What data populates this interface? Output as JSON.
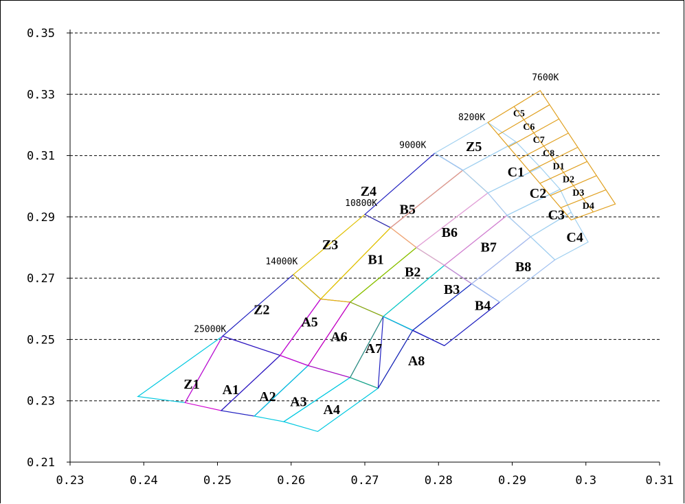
{
  "chart_data": {
    "type": "diagram",
    "xlim": [
      0.23,
      0.31
    ],
    "ylim": [
      0.21,
      0.35
    ],
    "x_ticks": [
      "0.23",
      "0.24",
      "0.25",
      "0.26",
      "0.27",
      "0.28",
      "0.29",
      "0.3",
      "0.31"
    ],
    "y_ticks": [
      "0.21",
      "0.23",
      "0.25",
      "0.27",
      "0.29",
      "0.31",
      "0.33",
      "0.35"
    ],
    "grid": "horizontal dashed",
    "cct_labels": [
      {
        "text": "25000K",
        "x": 0.249,
        "y": 0.2525
      },
      {
        "text": "14000K",
        "x": 0.2587,
        "y": 0.2745
      },
      {
        "text": "10800K",
        "x": 0.2695,
        "y": 0.2935
      },
      {
        "text": "9000K",
        "x": 0.2765,
        "y": 0.3125
      },
      {
        "text": "8200K",
        "x": 0.2845,
        "y": 0.3215
      },
      {
        "text": "7600K",
        "x": 0.2945,
        "y": 0.3345
      }
    ],
    "bins": [
      {
        "label": "Z1",
        "color": "#00c8e0",
        "poly": [
          [
            0.2392,
            0.2314
          ],
          [
            0.2507,
            0.2511
          ],
          [
            0.2456,
            0.2294
          ]
        ]
      },
      {
        "label": "A1",
        "color": "#d000d0",
        "poly": [
          [
            0.2456,
            0.2294
          ],
          [
            0.2507,
            0.2511
          ],
          [
            0.2585,
            0.2448
          ],
          [
            0.2505,
            0.2268
          ]
        ]
      },
      {
        "label": "A2",
        "color": "#2020c0",
        "poly": [
          [
            0.2505,
            0.2268
          ],
          [
            0.2585,
            0.2448
          ],
          [
            0.2623,
            0.2415
          ],
          [
            0.255,
            0.225
          ]
        ]
      },
      {
        "label": "A3",
        "color": "#00c8e0",
        "poly": [
          [
            0.255,
            0.225
          ],
          [
            0.2623,
            0.2415
          ],
          [
            0.268,
            0.2376
          ],
          [
            0.259,
            0.2232
          ]
        ]
      },
      {
        "label": "A4",
        "color": "#00c8e0",
        "poly": [
          [
            0.259,
            0.2232
          ],
          [
            0.268,
            0.2376
          ],
          [
            0.2718,
            0.2341
          ],
          [
            0.2636,
            0.22
          ]
        ]
      },
      {
        "label": "Z2",
        "color": "#2020c0",
        "poly": [
          [
            0.2507,
            0.2511
          ],
          [
            0.2603,
            0.2712
          ],
          [
            0.264,
            0.2632
          ],
          [
            0.2585,
            0.2448
          ]
        ]
      },
      {
        "label": "A5",
        "color": "#d000d0",
        "poly": [
          [
            0.2585,
            0.2448
          ],
          [
            0.264,
            0.2632
          ],
          [
            0.268,
            0.2622
          ],
          [
            0.2623,
            0.2415
          ]
        ]
      },
      {
        "label": "A6",
        "color": "#c000c0",
        "poly": [
          [
            0.2623,
            0.2415
          ],
          [
            0.268,
            0.2622
          ],
          [
            0.2725,
            0.2575
          ],
          [
            0.268,
            0.2376
          ]
        ]
      },
      {
        "label": "A7",
        "color": "#20a080",
        "poly": [
          [
            0.268,
            0.2376
          ],
          [
            0.2725,
            0.2575
          ],
          [
            0.2765,
            0.253
          ],
          [
            0.2718,
            0.2341
          ]
        ]
      },
      {
        "label": "A8",
        "color": "#2020c0",
        "poly": [
          [
            0.2718,
            0.2341
          ],
          [
            0.2765,
            0.253
          ],
          [
            0.2808,
            0.248
          ],
          [
            0.2725,
            0.2575
          ]
        ]
      },
      {
        "label": "Z3",
        "color": "#e0c000",
        "poly": [
          [
            0.2603,
            0.2712
          ],
          [
            0.27,
            0.2908
          ],
          [
            0.2735,
            0.2865
          ],
          [
            0.264,
            0.2632
          ]
        ]
      },
      {
        "label": "B1",
        "color": "#e0c000",
        "poly": [
          [
            0.264,
            0.2632
          ],
          [
            0.2735,
            0.2865
          ],
          [
            0.277,
            0.28
          ],
          [
            0.268,
            0.2622
          ]
        ]
      },
      {
        "label": "B2",
        "color": "#80c000",
        "poly": [
          [
            0.268,
            0.2622
          ],
          [
            0.277,
            0.28
          ],
          [
            0.2808,
            0.2742
          ],
          [
            0.2725,
            0.2575
          ]
        ]
      },
      {
        "label": "B3",
        "color": "#00c8e0",
        "poly": [
          [
            0.2725,
            0.2575
          ],
          [
            0.2808,
            0.2742
          ],
          [
            0.2845,
            0.2682
          ],
          [
            0.2765,
            0.253
          ]
        ]
      },
      {
        "label": "B4",
        "color": "#2020c0",
        "poly": [
          [
            0.2765,
            0.253
          ],
          [
            0.2845,
            0.2682
          ],
          [
            0.2883,
            0.2622
          ],
          [
            0.2808,
            0.248
          ]
        ]
      },
      {
        "label": "Z4",
        "color": "#2020c0",
        "poly": [
          [
            0.27,
            0.2908
          ],
          [
            0.2795,
            0.3108
          ],
          [
            0.2833,
            0.3052
          ],
          [
            0.2735,
            0.2865
          ]
        ]
      },
      {
        "label": "B5",
        "color": "#f0a080",
        "poly": [
          [
            0.2735,
            0.2865
          ],
          [
            0.2833,
            0.3052
          ],
          [
            0.2867,
            0.2978
          ],
          [
            0.277,
            0.28
          ]
        ]
      },
      {
        "label": "B6",
        "color": "#e0a0e0",
        "poly": [
          [
            0.277,
            0.28
          ],
          [
            0.2867,
            0.2978
          ],
          [
            0.2893,
            0.2905
          ],
          [
            0.2808,
            0.2742
          ]
        ]
      },
      {
        "label": "B7",
        "color": "#d080d0",
        "poly": [
          [
            0.2808,
            0.2742
          ],
          [
            0.2893,
            0.2905
          ],
          [
            0.2925,
            0.2835
          ],
          [
            0.2845,
            0.2682
          ]
        ]
      },
      {
        "label": "B8",
        "color": "#a0c0f0",
        "poly": [
          [
            0.2845,
            0.2682
          ],
          [
            0.2925,
            0.2835
          ],
          [
            0.2958,
            0.276
          ],
          [
            0.2883,
            0.2622
          ]
        ]
      },
      {
        "label": "Z5",
        "color": "#a0d0f0",
        "poly": [
          [
            0.2795,
            0.3108
          ],
          [
            0.2867,
            0.3208
          ],
          [
            0.2905,
            0.3145
          ],
          [
            0.2833,
            0.3052
          ]
        ]
      },
      {
        "label": "C1",
        "color": "#a0d0f0",
        "poly": [
          [
            0.2833,
            0.3052
          ],
          [
            0.2905,
            0.3145
          ],
          [
            0.2938,
            0.3062
          ],
          [
            0.2867,
            0.2978
          ]
        ]
      },
      {
        "label": "C2",
        "color": "#a0d0f0",
        "poly": [
          [
            0.2867,
            0.2978
          ],
          [
            0.2938,
            0.3062
          ],
          [
            0.2965,
            0.299
          ],
          [
            0.2893,
            0.2905
          ]
        ]
      },
      {
        "label": "C3",
        "color": "#a0d0f0",
        "poly": [
          [
            0.2893,
            0.2905
          ],
          [
            0.2965,
            0.299
          ],
          [
            0.298,
            0.2915
          ],
          [
            0.2925,
            0.2835
          ]
        ]
      },
      {
        "label": "C4",
        "color": "#a0d0f0",
        "poly": [
          [
            0.2925,
            0.2835
          ],
          [
            0.298,
            0.2915
          ],
          [
            0.3003,
            0.2818
          ],
          [
            0.2958,
            0.276
          ]
        ]
      }
    ],
    "orange_grid": {
      "color": "#e0a020",
      "corners": [
        [
          0.2867,
          0.3208
        ],
        [
          0.2938,
          0.3312
        ],
        [
          0.304,
          0.2942
        ],
        [
          0.298,
          0.289
        ]
      ],
      "labels": [
        "C5",
        "C6",
        "C7",
        "C8",
        "D1",
        "D2",
        "D3",
        "D4"
      ]
    },
    "bin_label_positions": {
      "Z1": [
        0.2465,
        0.2355
      ],
      "A1": [
        0.2518,
        0.2338
      ],
      "A2": [
        0.2568,
        0.2315
      ],
      "A3": [
        0.261,
        0.2298
      ],
      "A4": [
        0.2655,
        0.2272
      ],
      "Z2": [
        0.256,
        0.2598
      ],
      "A5": [
        0.2625,
        0.2558
      ],
      "A6": [
        0.2665,
        0.251
      ],
      "A7": [
        0.2712,
        0.2472
      ],
      "A8": [
        0.277,
        0.2432
      ],
      "Z3": [
        0.2653,
        0.281
      ],
      "B1": [
        0.2715,
        0.2762
      ],
      "B2": [
        0.2765,
        0.2722
      ],
      "B3": [
        0.2818,
        0.2665
      ],
      "B4": [
        0.286,
        0.2612
      ],
      "Z4": [
        0.2705,
        0.2985
      ],
      "B5": [
        0.2758,
        0.2925
      ],
      "B6": [
        0.2815,
        0.285
      ],
      "B7": [
        0.2868,
        0.2802
      ],
      "B8": [
        0.2915,
        0.2738
      ],
      "Z5": [
        0.2848,
        0.313
      ],
      "C1": [
        0.2905,
        0.3048
      ],
      "C2": [
        0.2935,
        0.2978
      ],
      "C3": [
        0.296,
        0.2908
      ],
      "C4": [
        0.2985,
        0.2835
      ]
    }
  }
}
